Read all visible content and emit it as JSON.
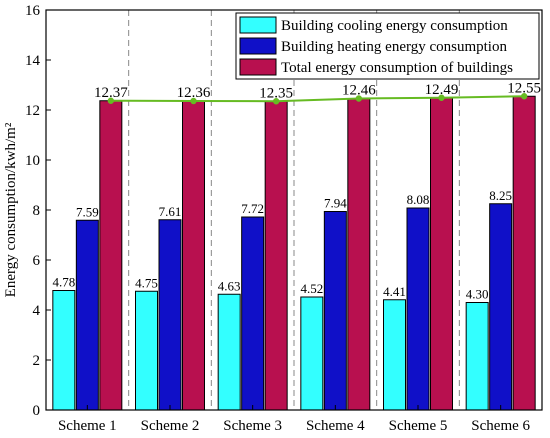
{
  "chart_data": {
    "type": "bar",
    "categories": [
      "Scheme 1",
      "Scheme 2",
      "Scheme 3",
      "Scheme 4",
      "Scheme 5",
      "Scheme 6"
    ],
    "series": [
      {
        "name": "Building cooling energy consumption",
        "values": [
          4.78,
          4.75,
          4.63,
          4.52,
          4.41,
          4.3
        ],
        "labels": [
          "4.78",
          "4.75",
          "4.63",
          "4.52",
          "4.41",
          "4.30"
        ],
        "color": "#33ffff"
      },
      {
        "name": "Building heating energy consumption",
        "values": [
          7.59,
          7.61,
          7.72,
          7.94,
          8.08,
          8.25
        ],
        "labels": [
          "7.59",
          "7.61",
          "7.72",
          "7.94",
          "8.08",
          "8.25"
        ],
        "color": "#1010c8"
      },
      {
        "name": "Total energy consumption of buildings",
        "values": [
          12.37,
          12.36,
          12.35,
          12.46,
          12.49,
          12.55
        ],
        "labels": [
          "12.37",
          "12.36",
          "12.35",
          "12.46",
          "12.49",
          "12.55"
        ],
        "color": "#b8104f"
      }
    ],
    "line": {
      "values": [
        12.37,
        12.36,
        12.35,
        12.46,
        12.49,
        12.55
      ],
      "color": "#66bb22"
    },
    "xlabel": "",
    "ylabel": "Energy consumption/kwh/m²",
    "ylim": [
      0,
      16
    ],
    "yticks": [
      "0",
      "2",
      "4",
      "6",
      "8",
      "10",
      "12",
      "14",
      "16"
    ],
    "grid": "vertical dashed separators between categories",
    "legend_position": "top-right"
  }
}
